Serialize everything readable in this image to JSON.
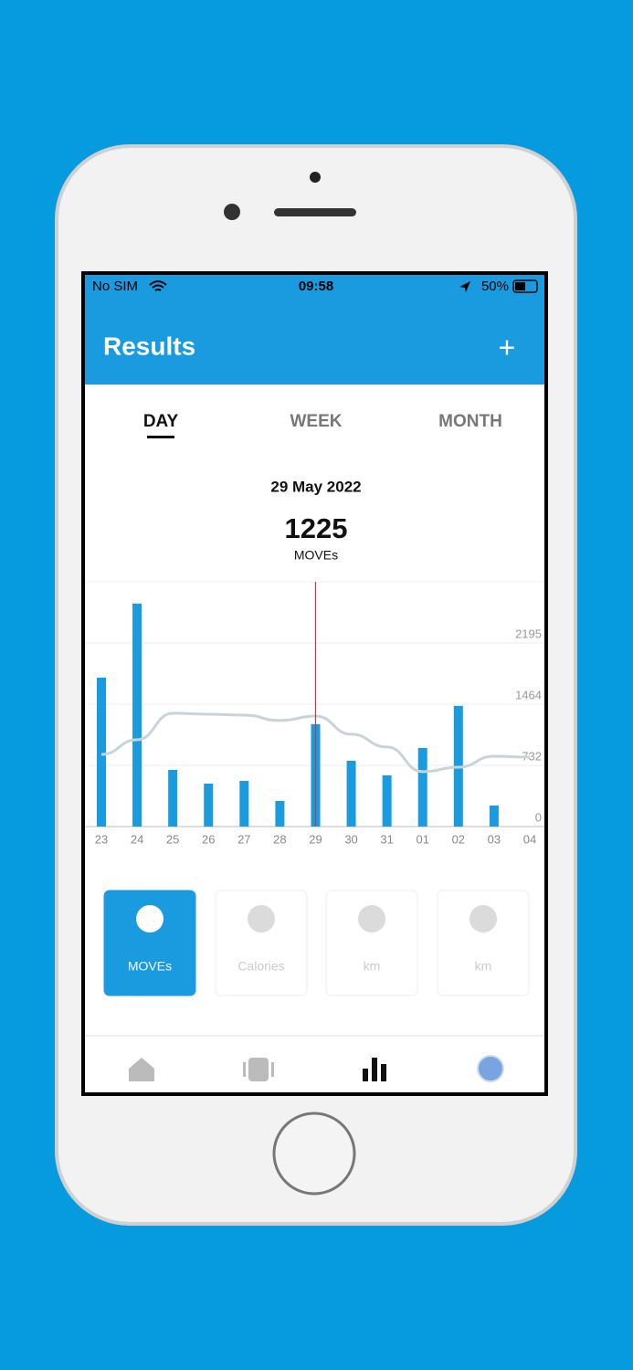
{
  "status_bar": {
    "carrier": "No SIM",
    "time": "09:58",
    "battery": "50%"
  },
  "header": {
    "title": "Results",
    "action": "+"
  },
  "tabs": [
    "DAY",
    "WEEK",
    "MONTH"
  ],
  "summary": {
    "date": "29 May 2022",
    "value": "1225",
    "unit": "MOVEs"
  },
  "chart_data": {
    "type": "bar",
    "categories": [
      "23",
      "24",
      "25",
      "26",
      "27",
      "28",
      "29",
      "30",
      "31",
      "01",
      "02",
      "03",
      "04"
    ],
    "values": [
      1781,
      2667,
      678,
      514,
      546,
      306,
      1225,
      787,
      612,
      940,
      1443,
      251,
      0
    ],
    "color": "#1a9be0",
    "line_values": [
      863,
      1038,
      1355,
      1344,
      1333,
      1268,
      1322,
      1104,
      951,
      656,
      710,
      841,
      831
    ],
    "line_color": "#c9d3da",
    "ylim": [
      0,
      2927
    ],
    "yticks": [
      0,
      732,
      1464,
      2195
    ],
    "grid": true,
    "highlight_index": 6,
    "highlight_color": "#c0394b"
  },
  "activities": [
    "MOVEs",
    "Calories",
    "km",
    "km"
  ]
}
